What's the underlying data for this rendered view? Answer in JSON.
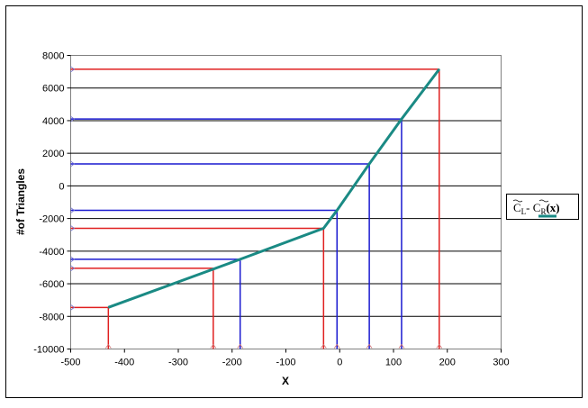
{
  "chart_data": {
    "type": "line",
    "title": "",
    "xlabel": "X",
    "ylabel": "#of Triangles",
    "xlim": [
      -500,
      300
    ],
    "ylim": [
      -10000,
      8000
    ],
    "x_ticks": [
      -500,
      -400,
      -300,
      -200,
      -100,
      0,
      100,
      200,
      300
    ],
    "y_ticks": [
      8000,
      6000,
      4000,
      2000,
      0,
      -2000,
      -4000,
      -6000,
      -8000,
      -10000
    ],
    "grid": "horizontal",
    "legend_position": "right",
    "series": [
      {
        "name": "C̃L - C̃R(x)",
        "legend_parts": {
          "c1": "C",
          "s1": "L",
          "dash": "- ",
          "c2": "C",
          "s2": "R",
          "arg": "(x)"
        },
        "color": "#1a8a84",
        "x": [
          -430,
          -185,
          -30,
          -5,
          55,
          115,
          185
        ],
        "y": [
          -7450,
          -4500,
          -2600,
          -1500,
          1350,
          4100,
          7150
        ]
      }
    ],
    "guide_lines": [
      {
        "x": -430,
        "y": -7450,
        "color": "#e02020"
      },
      {
        "x": -235,
        "y": -5050,
        "color": "#e02020"
      },
      {
        "x": -185,
        "y": -4500,
        "color": "#1a1ad0"
      },
      {
        "x": -30,
        "y": -2600,
        "color": "#e02020"
      },
      {
        "x": -5,
        "y": -1500,
        "color": "#1a1ad0"
      },
      {
        "x": 55,
        "y": 1350,
        "color": "#1a1ad0"
      },
      {
        "x": 115,
        "y": 4100,
        "color": "#1a1ad0"
      },
      {
        "x": 185,
        "y": 7150,
        "color": "#e02020"
      }
    ]
  }
}
